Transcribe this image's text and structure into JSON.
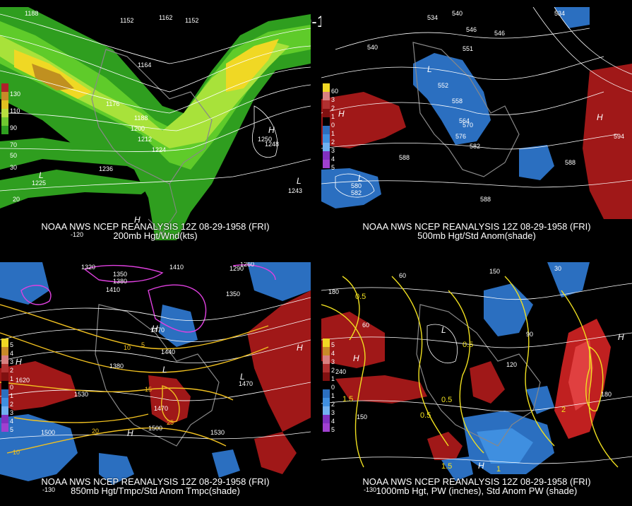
{
  "title": "12Z 08-29-1958 (FRI)",
  "panels": [
    {
      "caption1": "NOAA NWS NCEP REANALYSIS 12Z 08-29-1958 (FRI)",
      "caption2": "200mb Hgt/Wnd(kts)",
      "colorbar": [
        "130",
        "110",
        "90",
        "70",
        "50",
        "30"
      ],
      "labels": [
        "1188",
        "1152",
        "1162",
        "1164",
        "1176",
        "1188",
        "1200",
        "1212",
        "1224",
        "1236",
        "1248",
        "1250",
        "1243",
        "1225",
        "1152",
        "H",
        "L",
        "L",
        "-120",
        "20"
      ]
    },
    {
      "caption1": "NOAA NWS NCEP REANALYSIS 12Z 08-29-1958 (FRI)",
      "caption2": "500mb Hgt/Std Anom(shade)",
      "colorbar": [
        "60",
        "3",
        "2",
        "1",
        "0",
        "1",
        "2",
        "3",
        "4",
        "5"
      ],
      "labels": [
        "534",
        "540",
        "546",
        "546",
        "534",
        "552",
        "558",
        "564",
        "570",
        "576",
        "582",
        "588",
        "588",
        "588",
        "594",
        "582",
        "580",
        "551",
        "540",
        "H",
        "L",
        "L"
      ]
    },
    {
      "caption1": "NOAA NWS NCEP REANALYSIS 12Z 08-29-1958 (FRI)",
      "caption2": "850mb Hgt/Tmpc/Std Anom Tmpc(shade)",
      "colorbar": [
        "5",
        "4",
        "3",
        "2",
        "1",
        "0",
        "1",
        "2",
        "3",
        "4",
        "5"
      ],
      "labels": [
        "1320",
        "1350",
        "1410",
        "1260",
        "1290",
        "1350",
        "1380",
        "1410",
        "1440",
        "1380",
        "1470",
        "1530",
        "1470",
        "1500",
        "1500",
        "1530",
        "1620",
        "1470",
        "10",
        "5",
        "15",
        "20",
        "25",
        "10",
        "H",
        "L",
        "-130"
      ]
    },
    {
      "caption1": "NOAA NWS NCEP REANALYSIS 12Z 08-29-1958 (FRI)",
      "caption2": "1000mb Hgt, PW (inches), Std Anom PW (shade)",
      "colorbar": [
        "5",
        "4",
        "3",
        "2",
        "1",
        "0",
        "1",
        "2",
        "3",
        "4",
        "5"
      ],
      "labels": [
        "150",
        "180",
        "60",
        "30",
        "0.5",
        "60",
        "90",
        "120",
        "150",
        "180",
        "240",
        "0.5",
        "1.5",
        "1",
        "2",
        "1.5",
        "0.5",
        "0.5",
        "H",
        "L",
        "-130"
      ]
    }
  ]
}
